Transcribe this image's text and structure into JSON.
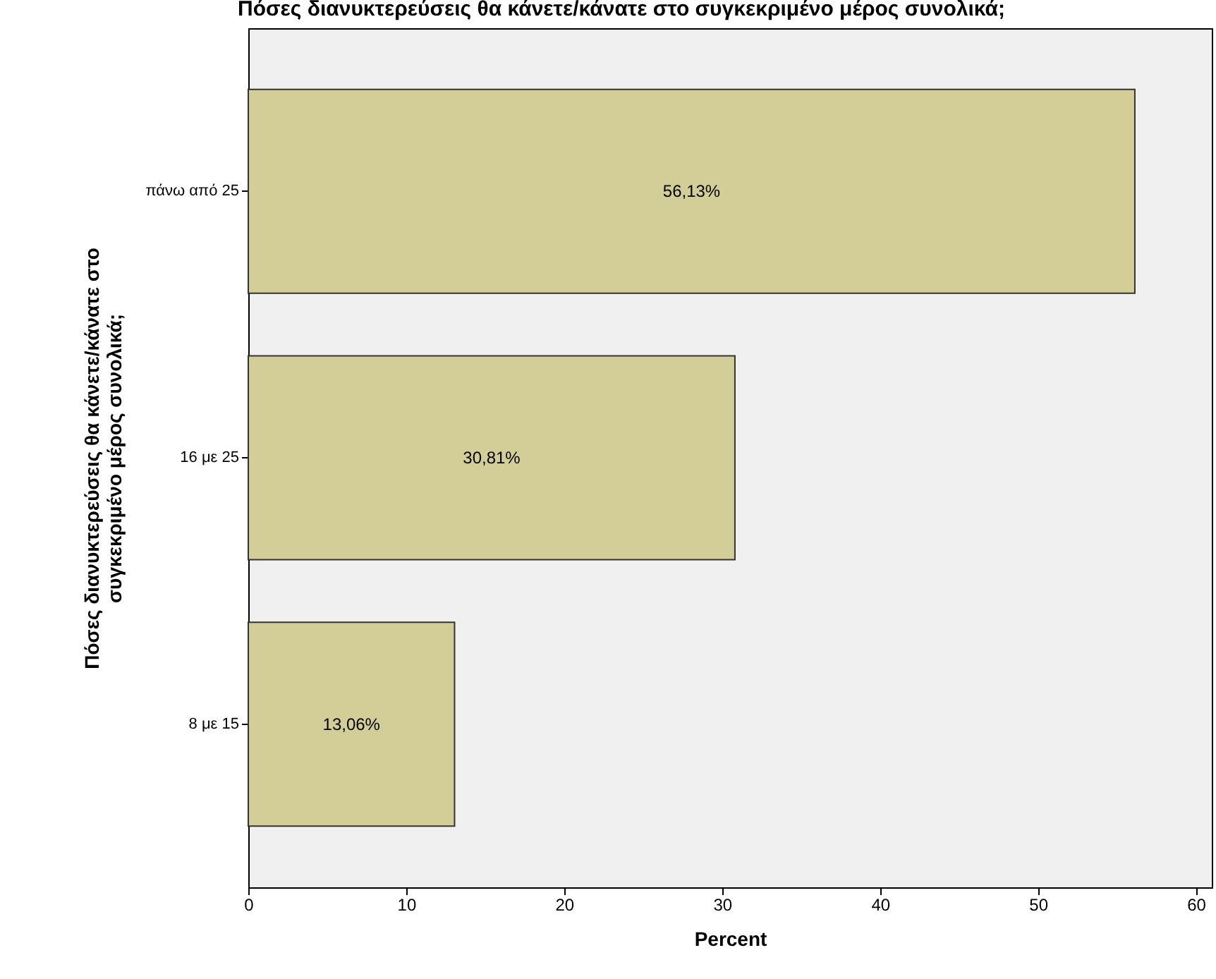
{
  "chart_data": {
    "type": "bar",
    "orientation": "horizontal",
    "title": "Πόσες διανυκτερεύσεις θα κάνετε/κάνατε στο συγκεκριμένο μέρος συνολικά;",
    "xlabel": "Percent",
    "ylabel": "Πόσες διανυκτερεύσεις θα κάνετε/κάνατε στο συγκεκριμένο μέρος συνολικά;",
    "categories": [
      "πάνω από 25",
      "16 με 25",
      "8 με 15"
    ],
    "values": [
      56.13,
      30.81,
      13.06
    ],
    "value_labels": [
      "56,13%",
      "30,81%",
      "13,06%"
    ],
    "color": "#d3ce97",
    "xlim": [
      0,
      61
    ],
    "xticks": [
      0,
      10,
      20,
      30,
      40,
      50,
      60
    ],
    "grid": false
  }
}
